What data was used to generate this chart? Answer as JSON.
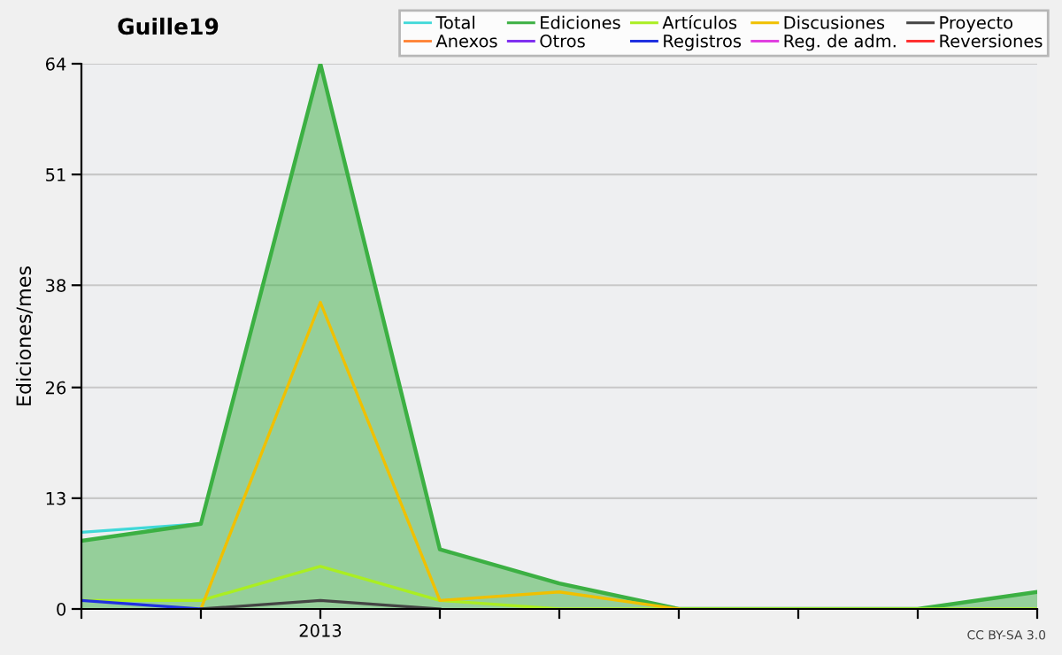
{
  "chart_data": {
    "type": "line",
    "title": "Guille19",
    "ylabel": "Ediciones/mes",
    "categories": [
      null,
      null,
      "2013",
      null,
      null,
      null,
      null,
      null,
      null
    ],
    "series": [
      {
        "name": "Total",
        "color": "#40d8d8",
        "values": [
          9,
          10,
          null,
          null,
          null,
          null,
          null,
          null,
          null
        ]
      },
      {
        "name": "Ediciones",
        "color": "#3cb043",
        "type": "area",
        "values": [
          8,
          10,
          64,
          7,
          3,
          0,
          0,
          0,
          2
        ]
      },
      {
        "name": "Artículos",
        "color": "#aaee22",
        "values": [
          1,
          1,
          5,
          1,
          0,
          0,
          0,
          0,
          0
        ]
      },
      {
        "name": "Discusiones",
        "color": "#f0c000",
        "values": [
          null,
          0,
          36,
          1,
          2,
          0,
          null,
          null,
          null
        ]
      },
      {
        "name": "Proyecto",
        "color": "#444444",
        "values": [
          null,
          0,
          1,
          0,
          null,
          null,
          null,
          null,
          null
        ]
      },
      {
        "name": "Anexos",
        "color": "#ff8030",
        "values": [
          null,
          null,
          null,
          null,
          null,
          null,
          null,
          null,
          null
        ]
      },
      {
        "name": "Otros",
        "color": "#8030f0",
        "values": [
          null,
          null,
          null,
          null,
          null,
          null,
          null,
          null,
          null
        ]
      },
      {
        "name": "Registros",
        "color": "#2030e0",
        "values": [
          1,
          0,
          null,
          null,
          null,
          null,
          null,
          null,
          null
        ]
      },
      {
        "name": "Reg. de adm.",
        "color": "#e040e0",
        "values": [
          null,
          null,
          null,
          null,
          null,
          null,
          null,
          null,
          null
        ]
      },
      {
        "name": "Reversiones",
        "color": "#ff3030",
        "values": [
          null,
          null,
          null,
          null,
          null,
          null,
          null,
          null,
          null
        ]
      }
    ],
    "ylim": [
      0,
      64
    ],
    "yticks": [
      0,
      13,
      26,
      38,
      51,
      64
    ],
    "grid": "y",
    "legend": "top right",
    "annotations": [
      "CC BY-SA 3.0"
    ]
  }
}
